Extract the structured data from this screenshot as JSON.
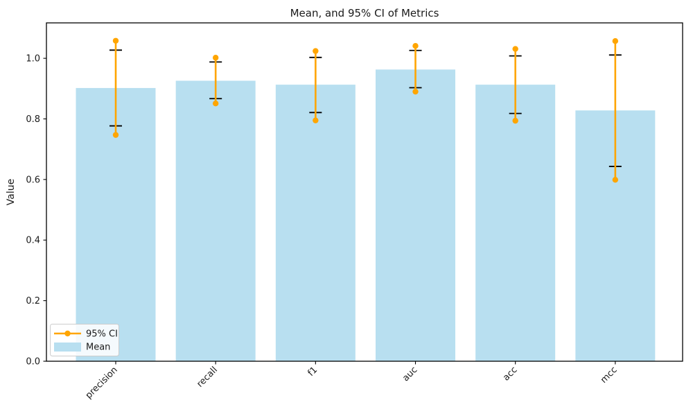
{
  "chart_data": {
    "type": "bar",
    "title": "Mean, and 95% CI of Metrics",
    "xlabel": "",
    "ylabel": "Value",
    "categories": [
      "precision",
      "recall",
      "f1",
      "auc",
      "acc",
      "mcc"
    ],
    "series": [
      {
        "name": "Mean",
        "type": "bar",
        "color": "#b8dff0",
        "values": [
          0.902,
          0.926,
          0.913,
          0.963,
          0.913,
          0.828
        ]
      },
      {
        "name": "95% CI",
        "type": "errorbar",
        "color": "#ffa500",
        "cap_color": "#000000",
        "low": [
          0.747,
          0.851,
          0.795,
          0.89,
          0.794,
          0.599
        ],
        "high": [
          1.058,
          1.002,
          1.024,
          1.041,
          1.031,
          1.057
        ],
        "inner_cap_low": [
          0.777,
          0.867,
          0.821,
          0.903,
          0.818,
          0.643
        ],
        "inner_cap_high": [
          1.027,
          0.988,
          1.003,
          1.026,
          1.008,
          1.011
        ]
      }
    ],
    "yticks": [
      0.0,
      0.2,
      0.4,
      0.6,
      0.8,
      1.0
    ],
    "ylim": [
      0,
      1.117
    ],
    "grid": false,
    "legend_position": "lower left",
    "axis_color": "#000000"
  },
  "legend": {
    "items": [
      {
        "label": "95% CI",
        "swatch": "line-with-circle-marker"
      },
      {
        "label": "Mean",
        "swatch": "patch"
      }
    ]
  }
}
